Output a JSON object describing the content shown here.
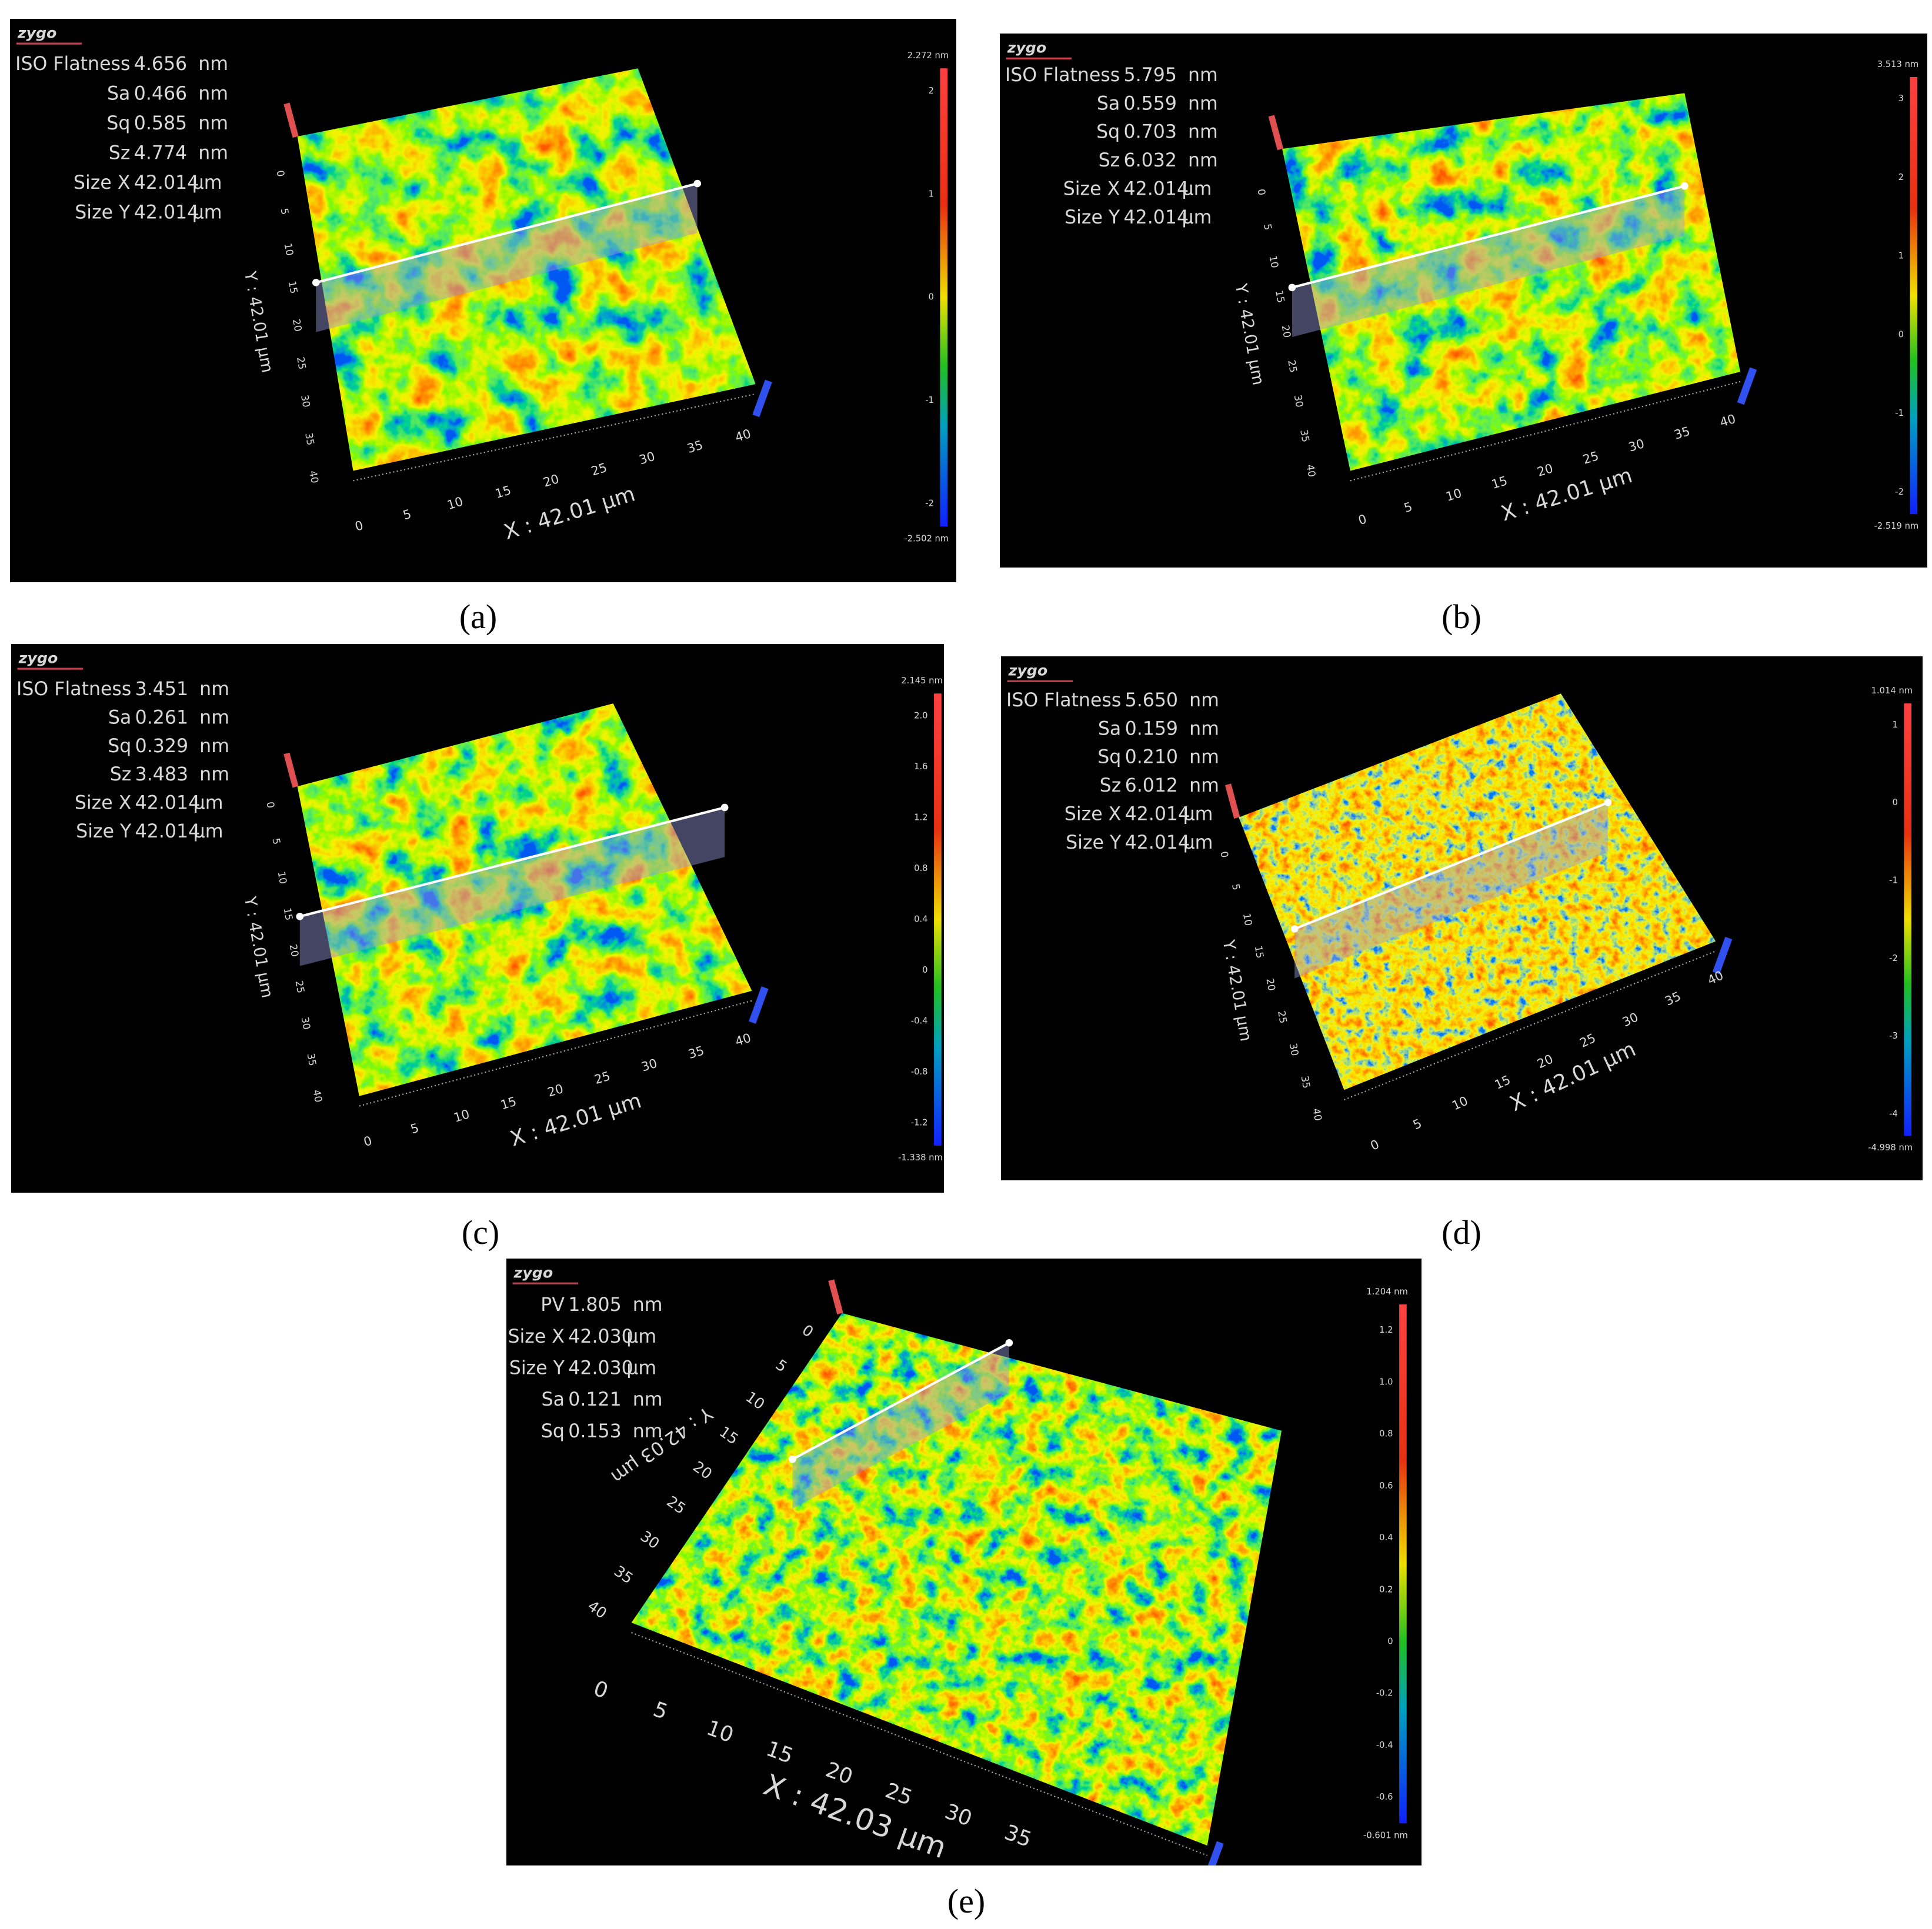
{
  "panels": [
    {
      "caption": "(a)",
      "logo": "zygo",
      "stats": [
        {
          "name": "ISO Flatness",
          "value": "4.656",
          "unit": "nm"
        },
        {
          "name": "Sa",
          "value": "0.466",
          "unit": "nm"
        },
        {
          "name": "Sq",
          "value": "0.585",
          "unit": "nm"
        },
        {
          "name": "Sz",
          "value": "4.774",
          "unit": "nm"
        },
        {
          "name": "Size X",
          "value": "42.014",
          "unit": "µm"
        },
        {
          "name": "Size Y",
          "value": "42.014",
          "unit": "µm"
        }
      ],
      "colorbar": {
        "max": "2.272 nm",
        "min": "-2.502 nm",
        "ticks": [
          "2",
          "1",
          "0",
          "-1",
          "-2"
        ]
      },
      "x_axis_label": "X : 42.01 µm",
      "y_axis_label": "Y : 42.01 µm",
      "x_ticks": [
        "0",
        "5",
        "10",
        "15",
        "20",
        "25",
        "30",
        "35",
        "40"
      ],
      "y_ticks": [
        "0",
        "5",
        "10",
        "15",
        "20",
        "25",
        "30",
        "35",
        "40"
      ]
    },
    {
      "caption": "(b)",
      "logo": "zygo",
      "stats": [
        {
          "name": "ISO Flatness",
          "value": "5.795",
          "unit": "nm"
        },
        {
          "name": "Sa",
          "value": "0.559",
          "unit": "nm"
        },
        {
          "name": "Sq",
          "value": "0.703",
          "unit": "nm"
        },
        {
          "name": "Sz",
          "value": "6.032",
          "unit": "nm"
        },
        {
          "name": "Size X",
          "value": "42.014",
          "unit": "µm"
        },
        {
          "name": "Size Y",
          "value": "42.014",
          "unit": "µm"
        }
      ],
      "colorbar": {
        "max": "3.513 nm",
        "min": "-2.519 nm",
        "ticks": [
          "3",
          "2",
          "1",
          "0",
          "-1",
          "-2"
        ]
      },
      "x_axis_label": "X : 42.01 µm",
      "y_axis_label": "Y : 42.01 µm",
      "x_ticks": [
        "0",
        "5",
        "10",
        "15",
        "20",
        "25",
        "30",
        "35",
        "40"
      ],
      "y_ticks": [
        "0",
        "5",
        "10",
        "15",
        "20",
        "25",
        "30",
        "35",
        "40"
      ]
    },
    {
      "caption": "(c)",
      "logo": "zygo",
      "stats": [
        {
          "name": "ISO Flatness",
          "value": "3.451",
          "unit": "nm"
        },
        {
          "name": "Sa",
          "value": "0.261",
          "unit": "nm"
        },
        {
          "name": "Sq",
          "value": "0.329",
          "unit": "nm"
        },
        {
          "name": "Sz",
          "value": "3.483",
          "unit": "nm"
        },
        {
          "name": "Size X",
          "value": "42.014",
          "unit": "µm"
        },
        {
          "name": "Size Y",
          "value": "42.014",
          "unit": "µm"
        }
      ],
      "colorbar": {
        "max": "2.145 nm",
        "min": "-1.338 nm",
        "ticks": [
          "2.0",
          "1.6",
          "1.2",
          "0.8",
          "0.4",
          "0",
          "-0.4",
          "-0.8",
          "-1.2"
        ]
      },
      "x_axis_label": "X : 42.01 µm",
      "y_axis_label": "Y : 42.01 µm",
      "x_ticks": [
        "0",
        "5",
        "10",
        "15",
        "20",
        "25",
        "30",
        "35",
        "40"
      ],
      "y_ticks": [
        "0",
        "5",
        "10",
        "15",
        "20",
        "25",
        "30",
        "35",
        "40"
      ]
    },
    {
      "caption": "(d)",
      "logo": "zygo",
      "stats": [
        {
          "name": "ISO Flatness",
          "value": "5.650",
          "unit": "nm"
        },
        {
          "name": "Sa",
          "value": "0.159",
          "unit": "nm"
        },
        {
          "name": "Sq",
          "value": "0.210",
          "unit": "nm"
        },
        {
          "name": "Sz",
          "value": "6.012",
          "unit": "nm"
        },
        {
          "name": "Size X",
          "value": "42.014",
          "unit": "µm"
        },
        {
          "name": "Size Y",
          "value": "42.014",
          "unit": "µm"
        }
      ],
      "colorbar": {
        "max": "1.014 nm",
        "min": "-4.998 nm",
        "ticks": [
          "1",
          "0",
          "-1",
          "-2",
          "-3",
          "-4"
        ]
      },
      "x_axis_label": "X : 42.01 µm",
      "y_axis_label": "Y : 42.01 µm",
      "x_ticks": [
        "0",
        "5",
        "10",
        "15",
        "20",
        "25",
        "30",
        "35",
        "40"
      ],
      "y_ticks": [
        "0",
        "5",
        "10",
        "15",
        "20",
        "25",
        "30",
        "35",
        "40"
      ]
    },
    {
      "caption": "(e)",
      "logo": "zygo",
      "stats": [
        {
          "name": "PV",
          "value": "1.805",
          "unit": "nm"
        },
        {
          "name": "Size X",
          "value": "42.030",
          "unit": "µm"
        },
        {
          "name": "Size Y",
          "value": "42.030",
          "unit": "µm"
        },
        {
          "name": "Sa",
          "value": "0.121",
          "unit": "nm"
        },
        {
          "name": "Sq",
          "value": "0.153",
          "unit": "nm"
        }
      ],
      "colorbar": {
        "max": "1.204 nm",
        "min": "-0.601 nm",
        "ticks": [
          "1.2",
          "1.0",
          "0.8",
          "0.6",
          "0.4",
          "0.2",
          "0",
          "-0.2",
          "-0.4",
          "-0.6"
        ]
      },
      "x_axis_label": "X : 42.03 µm",
      "y_axis_label": "Y : 42.03 µm",
      "x_ticks": [
        "0",
        "5",
        "10",
        "15",
        "20",
        "25",
        "30",
        "35"
      ],
      "y_ticks": [
        "0",
        "5",
        "10",
        "15",
        "20",
        "25",
        "30",
        "35",
        "40"
      ]
    }
  ]
}
